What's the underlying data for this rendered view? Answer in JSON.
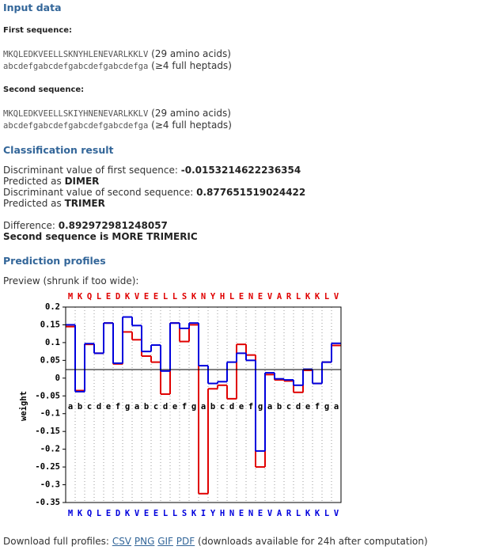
{
  "input": {
    "title": "Input data",
    "first_label": "First sequence:",
    "first_sequence": "MKQLEDKVEELLSKNYHLENEVARLKKLV",
    "first_length": "(29 amino acids)",
    "first_heptads": "abcdefgabcdefgabcdefgabcdefga",
    "first_heptad_note": "(≥4 full heptads)",
    "second_label": "Second sequence:",
    "second_sequence": "MKQLEDKVEELLSKIYHNENEVARLKKLV",
    "second_length": "(29 amino acids)",
    "second_heptads": "abcdefgabcdefgabcdefgabcdefga",
    "second_heptad_note": "(≥4 full heptads)"
  },
  "classification": {
    "title": "Classification result",
    "first_label": "Discriminant value of first sequence:",
    "first_value": "-0.0153214622236354",
    "first_pred_label": "Predicted as",
    "first_pred": "DIMER",
    "second_label": "Discriminant value of second sequence:",
    "second_value": "0.877651519024422",
    "second_pred_label": "Predicted as",
    "second_pred": "TRIMER",
    "difference_label": "Difference:",
    "difference_value": "0.892972981248057",
    "conclusion": "Second sequence is MORE TRIMERIC"
  },
  "profiles": {
    "title": "Prediction profiles",
    "preview": "Preview (shrunk if too wide):"
  },
  "chart_data": {
    "type": "step",
    "y_label": "weight",
    "categories": [
      "M",
      "K",
      "Q",
      "L",
      "E",
      "D",
      "K",
      "V",
      "E",
      "E",
      "L",
      "L",
      "S",
      "K",
      "N",
      "Y",
      "H",
      "L",
      "E",
      "N",
      "E",
      "V",
      "A",
      "R",
      "L",
      "K",
      "K",
      "L",
      "V"
    ],
    "categories2": [
      "M",
      "K",
      "Q",
      "L",
      "E",
      "D",
      "K",
      "V",
      "E",
      "E",
      "L",
      "L",
      "S",
      "K",
      "I",
      "Y",
      "H",
      "N",
      "E",
      "N",
      "E",
      "V",
      "A",
      "R",
      "L",
      "K",
      "K",
      "L",
      "V"
    ],
    "heptad_labels": [
      "a",
      "b",
      "c",
      "d",
      "e",
      "f",
      "g",
      "a",
      "b",
      "c",
      "d",
      "e",
      "f",
      "g",
      "a",
      "b",
      "c",
      "d",
      "e",
      "f",
      "g",
      "a",
      "b",
      "c",
      "d",
      "e",
      "f",
      "g",
      "a"
    ],
    "series": [
      {
        "color": "#e00000",
        "values": [
          0.145,
          -0.035,
          0.095,
          0.07,
          0.155,
          0.04,
          0.13,
          0.108,
          0.062,
          0.045,
          -0.045,
          0.155,
          0.103,
          0.15,
          -0.325,
          -0.03,
          -0.02,
          -0.058,
          0.095,
          0.065,
          -0.25,
          0.01,
          -0.005,
          -0.008,
          -0.04,
          0.022,
          -0.015,
          0.045,
          0.092
        ]
      },
      {
        "color": "#0000dd",
        "values": [
          0.15,
          -0.038,
          0.097,
          0.07,
          0.155,
          0.042,
          0.172,
          0.148,
          0.075,
          0.093,
          0.02,
          0.155,
          0.14,
          0.155,
          0.035,
          -0.015,
          -0.01,
          0.045,
          0.07,
          0.05,
          -0.205,
          0.015,
          -0.002,
          -0.005,
          -0.02,
          0.025,
          -0.015,
          0.045,
          0.098
        ]
      }
    ],
    "threshold": 0.024,
    "ylim": [
      -0.35,
      0.2
    ],
    "yticks": [
      0.2,
      0.15,
      0.1,
      0.05,
      0,
      -0.05,
      -0.1,
      -0.15,
      -0.2,
      -0.25,
      -0.3,
      -0.35
    ],
    "grid": true
  },
  "download": {
    "label": "Download full profiles:",
    "links": [
      "CSV",
      "PNG",
      "GIF",
      "PDF"
    ],
    "note": "(downloads available for 24h after computation)"
  }
}
